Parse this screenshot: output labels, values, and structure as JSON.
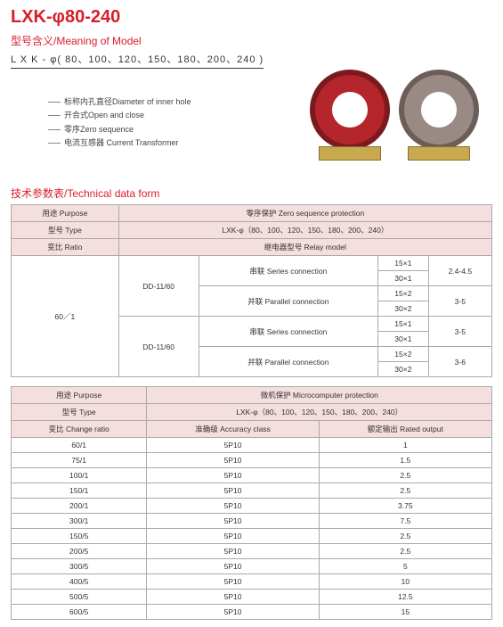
{
  "title": "LXK-φ80-240",
  "meaning_header": "型号含义/Meaning of Model",
  "model_code": "L X K - φ( 80、100、120、150、180、200、240 )",
  "legend": [
    "标称内孔直径Diameter of inner hole",
    "开合式Open and close",
    "零序Zero sequence",
    "电流互感器 Current Transformer"
  ],
  "tech_header": "技术参数表/Technical data form",
  "table1": {
    "purpose_lbl": "用途 Purpose",
    "purpose_val": "零序保护  Zero sequence protection",
    "type_lbl": "型号 Type",
    "type_val": "LXK-φ（80、100、120、150、180、200、240）",
    "ratio_lbl": "变比 Ratio",
    "relay_lbl": "继电器型号  Relay model",
    "dd1": "DD-11/60",
    "dd2": "DD-11/60",
    "series": "串联 Series connection",
    "parallel": "并联 Parallel connection",
    "ratio_val": "60／1",
    "v": [
      "15×1",
      "30×1",
      "15×2",
      "30×2",
      "15×1",
      "30×1",
      "15×2",
      "30×2"
    ],
    "r": [
      "2.4-4.5",
      "3-5",
      "3-5",
      "3-6"
    ]
  },
  "table2": {
    "purpose_lbl": "用途 Purpose",
    "purpose_val": "微机保护  Microcomputer protection",
    "type_lbl": "型号 Type",
    "type_val": "LXK-φ（80、100、120、150、180、200、240）",
    "change_lbl": "变比 Change ratio",
    "acc_lbl": "准确级  Accuracy class",
    "rated_lbl": "额定输出  Rated output",
    "rows": [
      {
        "r": "60/1",
        "a": "5P10",
        "o": "1"
      },
      {
        "r": "75/1",
        "a": "5P10",
        "o": "1.5"
      },
      {
        "r": "100/1",
        "a": "5P10",
        "o": "2.5"
      },
      {
        "r": "150/1",
        "a": "5P10",
        "o": "2.5"
      },
      {
        "r": "200/1",
        "a": "5P10",
        "o": "3.75"
      },
      {
        "r": "300/1",
        "a": "5P10",
        "o": "7.5"
      },
      {
        "r": "150/5",
        "a": "5P10",
        "o": "2.5"
      },
      {
        "r": "200/5",
        "a": "5P10",
        "o": "2.5"
      },
      {
        "r": "300/5",
        "a": "5P10",
        "o": "5"
      },
      {
        "r": "400/5",
        "a": "5P10",
        "o": "10"
      },
      {
        "r": "500/5",
        "a": "5P10",
        "o": "12.5"
      },
      {
        "r": "600/5",
        "a": "5P10",
        "o": "15"
      }
    ]
  }
}
